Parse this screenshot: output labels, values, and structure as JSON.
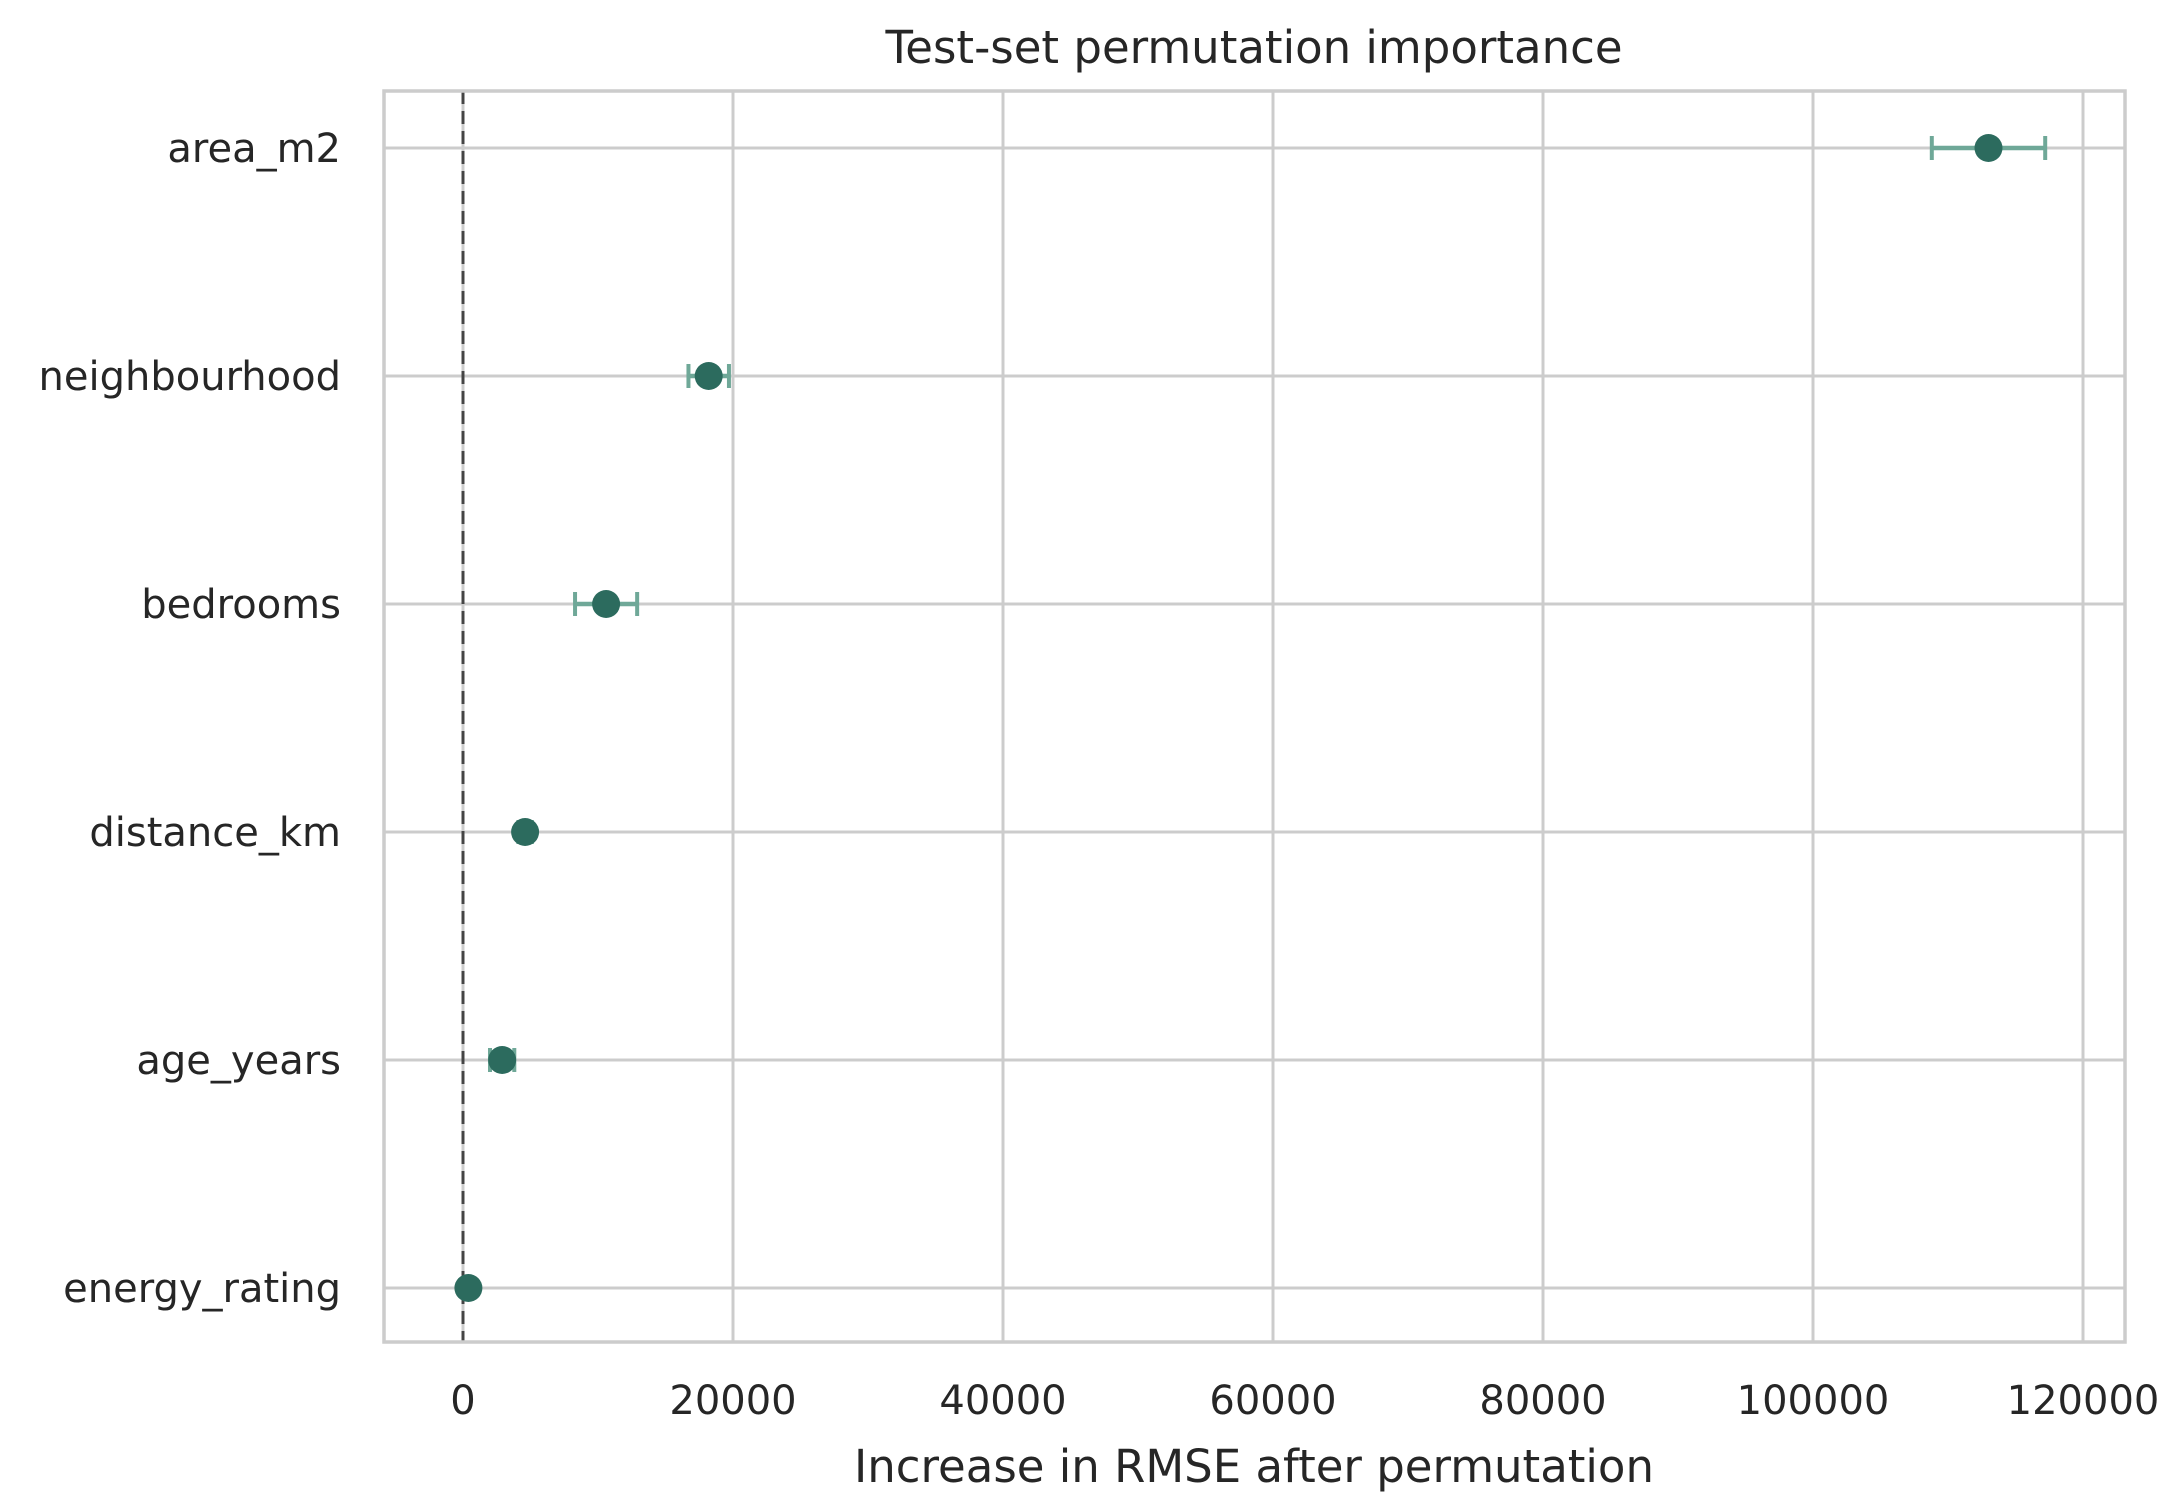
{
  "chart_data": {
    "type": "scatter",
    "title": "Test-set permutation importance",
    "xlabel": "Increase in RMSE after permutation",
    "ylabel": "",
    "xlim": [
      -10000,
      123000
    ],
    "xticks": [
      0,
      20000,
      40000,
      60000,
      80000,
      100000,
      120000
    ],
    "xtick_labels": [
      "0",
      "20000",
      "40000",
      "60000",
      "80000",
      "100000",
      "120000"
    ],
    "grid": true,
    "reference_line": {
      "x": 0,
      "style": "dashed"
    },
    "categories": [
      "area_m2",
      "neighbourhood",
      "bedrooms",
      "distance_km",
      "age_years",
      "energy_rating"
    ],
    "series": [
      {
        "values": [
          113000,
          18200,
          10600,
          4600,
          2900,
          400
        ],
        "errors": [
          4200,
          1500,
          2300,
          500,
          900,
          300
        ]
      }
    ],
    "colors": {
      "point": "#2c6b5e",
      "errorbar": "#6fa898",
      "grid": "#cccccc",
      "reference_line": "#444444",
      "text": "#262626"
    }
  }
}
